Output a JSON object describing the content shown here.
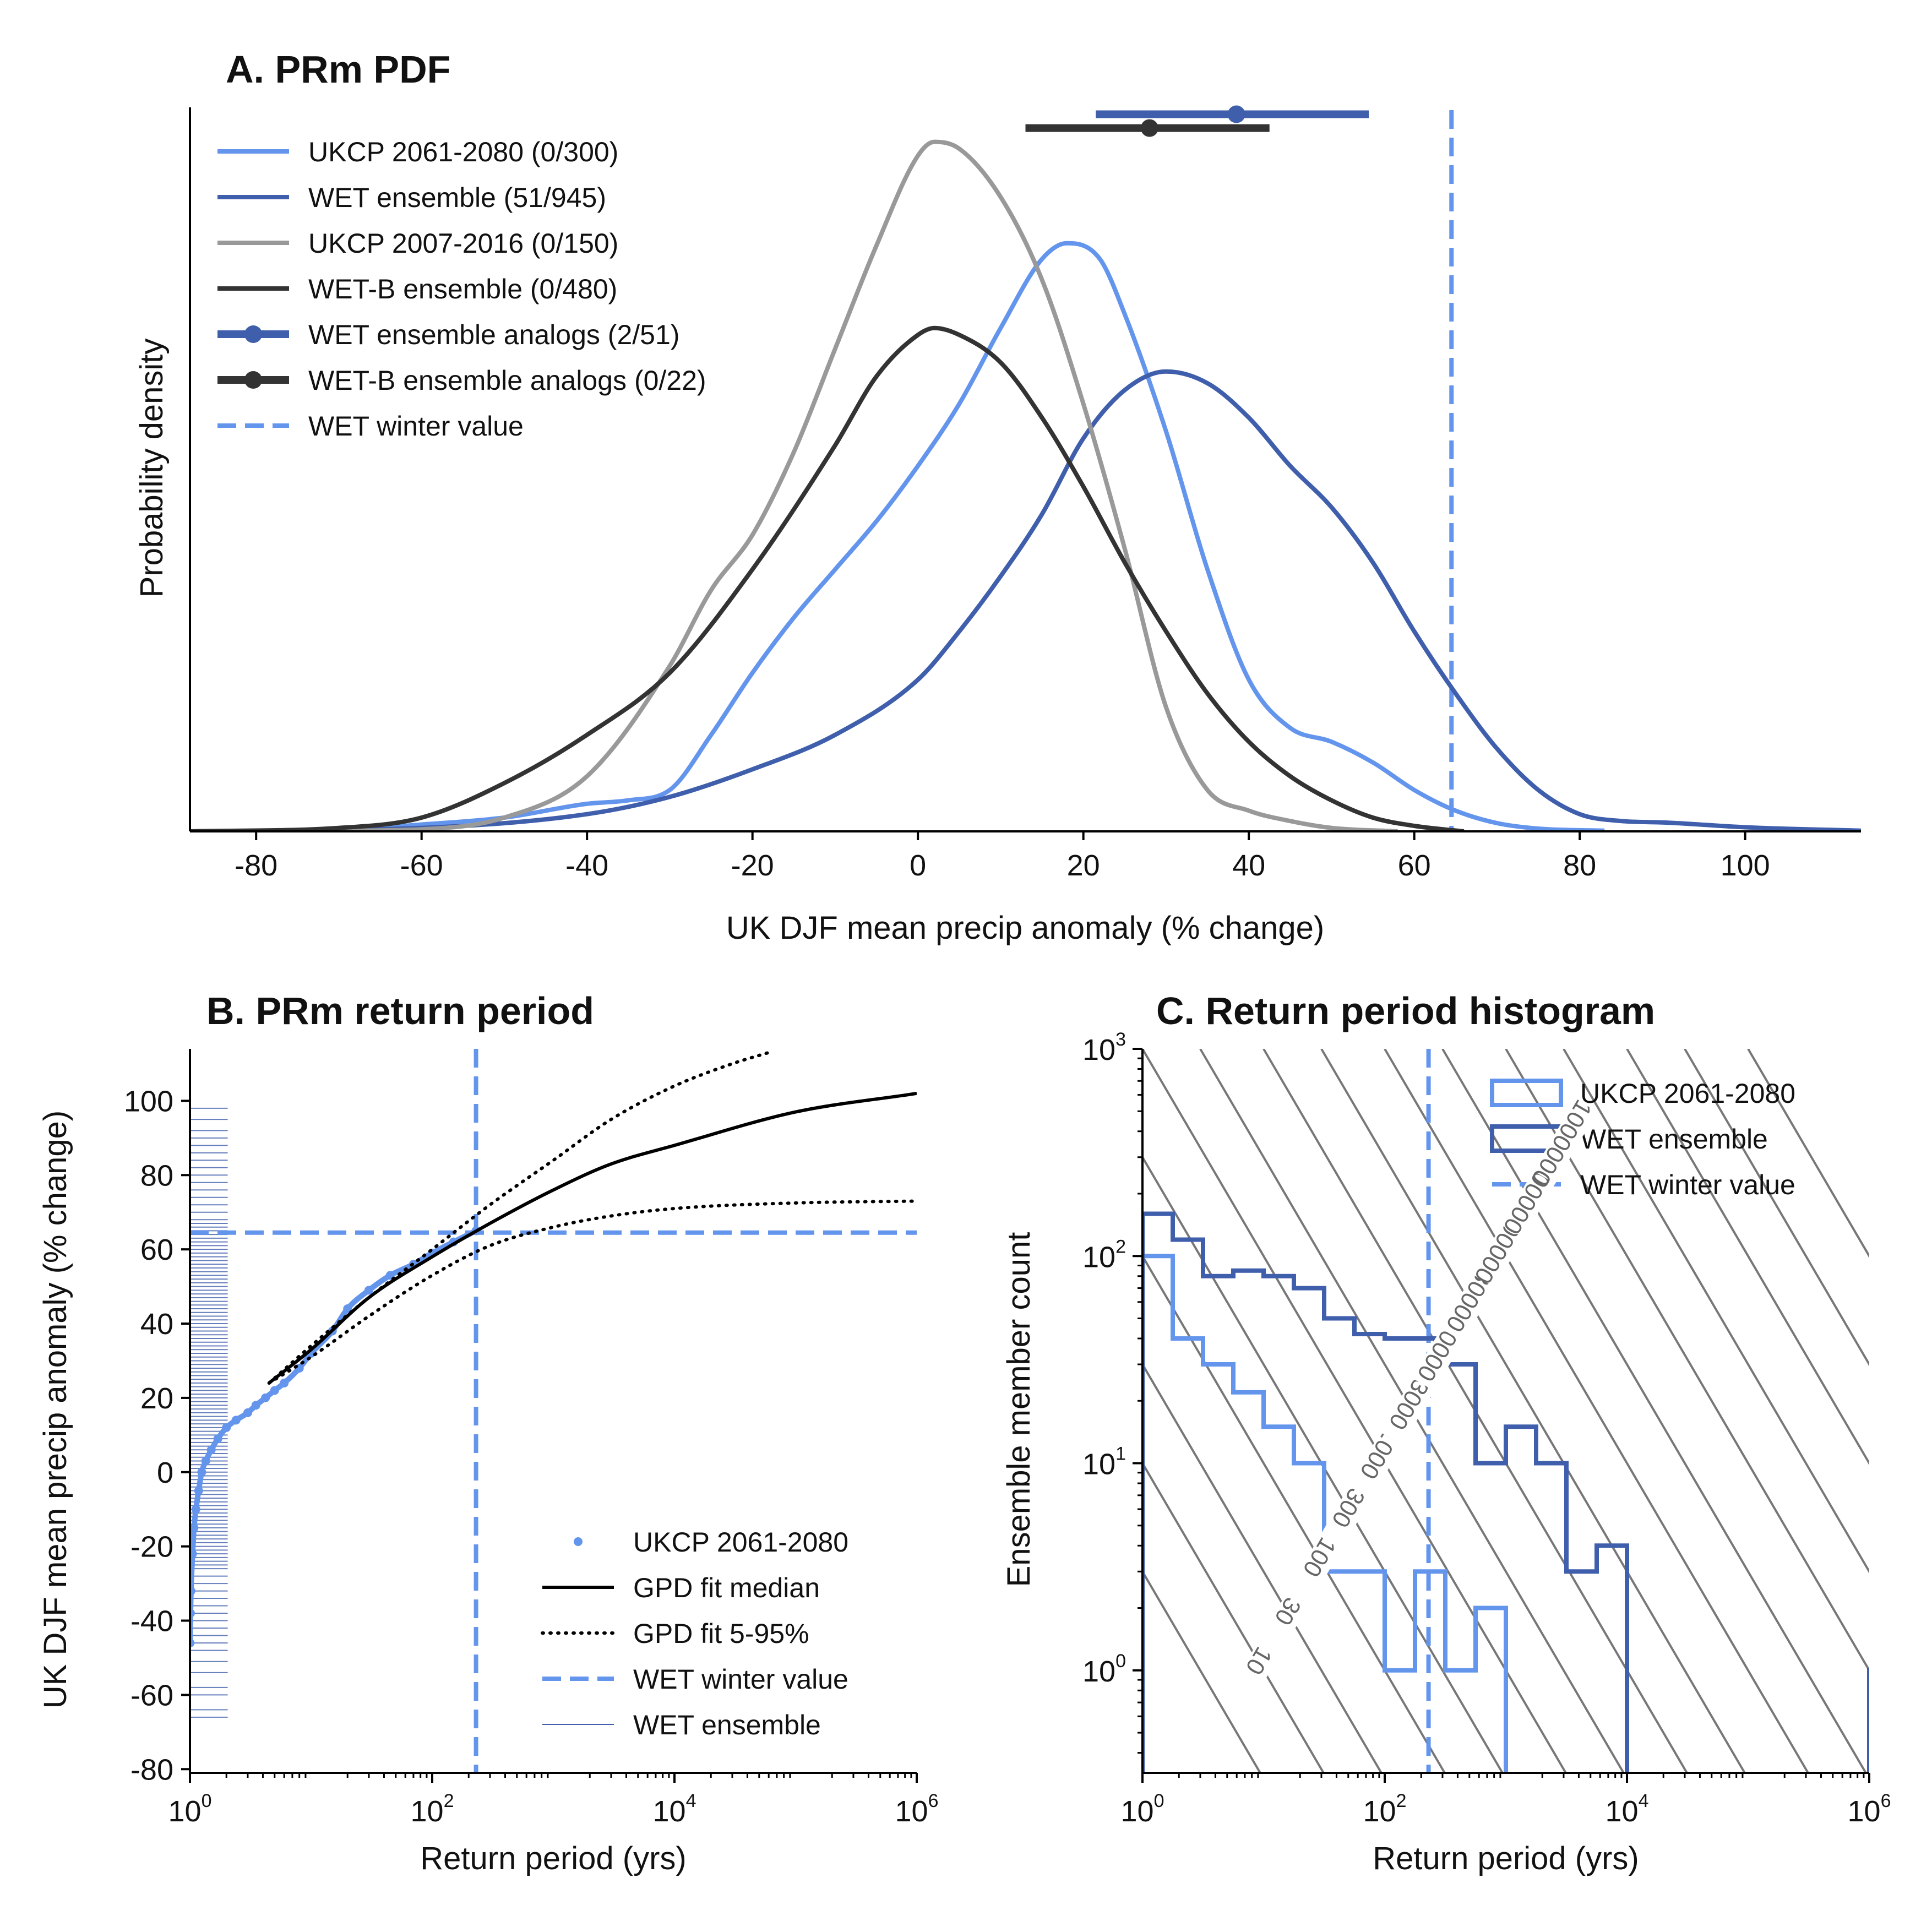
{
  "chart_data": [
    {
      "panel": "A",
      "type": "line",
      "title": "A. PRm PDF",
      "xlabel": "UK DJF mean precip anomaly (% change)",
      "ylabel": "Probability density",
      "xlim": [
        -88,
        114
      ],
      "ylim": [
        0,
        1.05
      ],
      "xticks": [
        -80,
        -60,
        -40,
        -20,
        0,
        20,
        40,
        60,
        80,
        100
      ],
      "xtick_labels": [
        "-80",
        "-60",
        "-40",
        "-20",
        "0",
        "20",
        "40",
        "60",
        "80",
        "100"
      ],
      "legend_position": "top-left",
      "series": [
        {
          "name": "UKCP 2061-2080 (0/300)",
          "color": "#6495ED",
          "x": [
            -88,
            -70,
            -60,
            -50,
            -40,
            -35,
            -30,
            -25,
            -20,
            -15,
            -10,
            -5,
            0,
            5,
            10,
            15,
            18,
            22,
            25,
            30,
            35,
            40,
            45,
            50,
            55,
            60,
            65,
            70,
            75,
            83
          ],
          "y": [
            0,
            0.002,
            0.01,
            0.02,
            0.04,
            0.045,
            0.06,
            0.14,
            0.23,
            0.31,
            0.38,
            0.45,
            0.53,
            0.62,
            0.73,
            0.83,
            0.853,
            0.83,
            0.75,
            0.58,
            0.38,
            0.22,
            0.15,
            0.13,
            0.1,
            0.06,
            0.03,
            0.012,
            0.004,
            0.001
          ]
        },
        {
          "name": "WET ensemble (51/945)",
          "color": "#3F5EAB",
          "x": [
            -88,
            -60,
            -40,
            -30,
            -20,
            -10,
            0,
            5,
            10,
            15,
            20,
            25,
            30,
            35,
            40,
            45,
            50,
            55,
            60,
            65,
            70,
            75,
            80,
            85,
            90,
            100,
            114
          ],
          "y": [
            0,
            0.005,
            0.025,
            0.05,
            0.09,
            0.14,
            0.22,
            0.29,
            0.37,
            0.46,
            0.57,
            0.64,
            0.667,
            0.65,
            0.6,
            0.53,
            0.47,
            0.39,
            0.29,
            0.2,
            0.12,
            0.06,
            0.025,
            0.015,
            0.013,
            0.006,
            0.001
          ]
        },
        {
          "name": "UKCP 2007-2016 (0/150)",
          "color": "#999999",
          "x": [
            -88,
            -70,
            -60,
            -50,
            -40,
            -30,
            -25,
            -20,
            -15,
            -10,
            -5,
            0,
            2,
            5,
            10,
            15,
            20,
            25,
            30,
            35,
            40,
            45,
            50,
            58
          ],
          "y": [
            0,
            0.001,
            0.003,
            0.02,
            0.08,
            0.24,
            0.35,
            0.43,
            0.55,
            0.7,
            0.85,
            0.98,
            1.0,
            0.99,
            0.92,
            0.8,
            0.62,
            0.41,
            0.18,
            0.06,
            0.03,
            0.015,
            0.005,
            0
          ]
        },
        {
          "name": "WET-B ensemble (0/480)",
          "color": "#333333",
          "x": [
            -88,
            -70,
            -60,
            -50,
            -40,
            -30,
            -20,
            -10,
            -5,
            0,
            2,
            5,
            10,
            15,
            20,
            25,
            30,
            35,
            40,
            45,
            50,
            55,
            60,
            66
          ],
          "y": [
            0,
            0.005,
            0.02,
            0.07,
            0.14,
            0.23,
            0.38,
            0.56,
            0.66,
            0.72,
            0.73,
            0.72,
            0.68,
            0.6,
            0.5,
            0.39,
            0.29,
            0.2,
            0.13,
            0.08,
            0.045,
            0.02,
            0.008,
            0
          ]
        }
      ],
      "analog_markers": [
        {
          "name": "WET ensemble analogs (2/51)",
          "color": "#3F5EAB",
          "center": 38.5,
          "range": [
            21.5,
            54.5
          ],
          "y": 1.04
        },
        {
          "name": "WET-B ensemble analogs (0/22)",
          "color": "#333333",
          "center": 28,
          "range": [
            13,
            42.5
          ],
          "y": 1.02
        }
      ],
      "reference_line": {
        "name": "WET winter value",
        "color": "#6495ED",
        "x": 64.5
      }
    },
    {
      "panel": "B",
      "type": "line",
      "title": "B. PRm return period",
      "xlabel": "Return period (yrs)",
      "ylabel": "UK DJF mean precip anomaly (% change)",
      "xscale": "log",
      "xlim": [
        1,
        1000000
      ],
      "ylim": [
        -81,
        114
      ],
      "xticks": [
        1,
        100,
        10000,
        1000000
      ],
      "xtick_labels": [
        {
          "base": "10",
          "exp": "0"
        },
        {
          "base": "10",
          "exp": "2"
        },
        {
          "base": "10",
          "exp": "4"
        },
        {
          "base": "10",
          "exp": "6"
        }
      ],
      "yticks": [
        -80,
        -60,
        -40,
        -20,
        0,
        20,
        40,
        60,
        80,
        100
      ],
      "ytick_labels": [
        "-80",
        "-60",
        "-40",
        "-20",
        "0",
        "20",
        "40",
        "60",
        "80",
        "100"
      ],
      "legend_position": "lower-right",
      "series": [
        {
          "name": "UKCP 2061-2080",
          "color": "#6495ED",
          "kind": "scatter",
          "x": [
            1.003,
            1.01,
            1.02,
            1.05,
            1.08,
            1.12,
            1.18,
            1.25,
            1.35,
            1.5,
            1.7,
            2.0,
            2.4,
            3.0,
            3.5,
            4.2,
            5,
            6,
            8,
            10,
            15,
            20,
            30,
            45,
            70,
            100,
            150,
            230
          ],
          "y": [
            -46,
            -38,
            -32,
            -22,
            -15,
            -10,
            -5,
            0,
            3,
            6,
            9,
            12,
            14,
            16,
            18,
            20,
            22,
            24,
            28,
            32,
            38,
            44,
            49,
            53,
            56,
            59,
            62,
            65
          ]
        },
        {
          "name": "GPD fit median",
          "color": "#000000",
          "kind": "line",
          "x": [
            4.5,
            10,
            30,
            100,
            300,
            1000,
            3000,
            10000,
            100000,
            1000000
          ],
          "y": [
            24,
            33,
            47,
            58,
            67,
            76,
            83,
            88,
            97,
            102
          ]
        },
        {
          "name": "GPD fit 5-95%",
          "color": "#000000",
          "kind": "dotted",
          "x": [
            4.5,
            10,
            30,
            100,
            300,
            1000,
            3000,
            10000,
            30000,
            60000
          ],
          "y": [
            24,
            34,
            47,
            60,
            72,
            84,
            95,
            104,
            110,
            113
          ]
        },
        {
          "name": "GPD fit 5-95% (lower)",
          "color": "#000000",
          "kind": "dotted",
          "x": [
            4.5,
            10,
            30,
            100,
            300,
            1000,
            3000,
            10000,
            100000,
            1000000
          ],
          "y": [
            24,
            31,
            42,
            53,
            61,
            66,
            69,
            71,
            72.5,
            73
          ]
        }
      ],
      "rug": {
        "name": "WET ensemble",
        "color": "#3F5EAB",
        "x_range": [
          1,
          2.05
        ],
        "y": [
          -66,
          -64,
          -60,
          -58,
          -54,
          -51,
          -48,
          -46,
          -44,
          -42,
          -40,
          -38,
          -36,
          -34,
          -32,
          -30,
          -28,
          -26,
          -25,
          -24,
          -23,
          -22,
          -21,
          -20,
          -19,
          -18,
          -17,
          -16,
          -15,
          -14,
          -13,
          -12,
          -11,
          -10,
          -9,
          -8,
          -7,
          -6,
          -5,
          -4,
          -3,
          -2,
          -1,
          0,
          1,
          2,
          3,
          4,
          5,
          6,
          7,
          8,
          9,
          10,
          11,
          12,
          13,
          14,
          15,
          16,
          17,
          18,
          19,
          20,
          21,
          22,
          23,
          24,
          25,
          26,
          27,
          28,
          29,
          30,
          31,
          32,
          33,
          34,
          35,
          36,
          37,
          38,
          39,
          40,
          41,
          42,
          43,
          44,
          45,
          46,
          47,
          48,
          49,
          50,
          51,
          52,
          53,
          54,
          55,
          56,
          57,
          58,
          59,
          60,
          61,
          62,
          63,
          64,
          65,
          66,
          67,
          68,
          70,
          72,
          74,
          76,
          78,
          80,
          82,
          84,
          86,
          88,
          90,
          92,
          95,
          98
        ]
      },
      "reference_lines": {
        "name": "WET winter value",
        "color": "#6495ED",
        "x": 230,
        "y": 64.5
      }
    },
    {
      "panel": "C",
      "type": "histogram",
      "title": "C. Return period histogram",
      "xlabel": "Return period (yrs)",
      "ylabel": "Ensemble member count",
      "xscale": "log",
      "yscale": "log",
      "xlim": [
        1,
        1000000
      ],
      "ylim": [
        0.32,
        1000
      ],
      "xticks": [
        1,
        100,
        10000,
        1000000
      ],
      "xtick_labels": [
        {
          "base": "10",
          "exp": "0"
        },
        {
          "base": "10",
          "exp": "2"
        },
        {
          "base": "10",
          "exp": "4"
        },
        {
          "base": "10",
          "exp": "6"
        }
      ],
      "yticks": [
        1,
        10,
        100,
        1000
      ],
      "ytick_labels": [
        {
          "base": "10",
          "exp": "0"
        },
        {
          "base": "10",
          "exp": "1"
        },
        {
          "base": "10",
          "exp": "2"
        },
        {
          "base": "10",
          "exp": "3"
        }
      ],
      "legend_position": "top-right",
      "bin_log_width": 0.25,
      "series": [
        {
          "name": "UKCP 2061-2080",
          "color": "#6495ED",
          "log_bin_start": 0,
          "counts": [
            100,
            40,
            30,
            22,
            15,
            10,
            3,
            3,
            1,
            3,
            1,
            2
          ]
        },
        {
          "name": "WET ensemble",
          "color": "#3F5EAB",
          "log_bin_start": 0,
          "counts": [
            160,
            120,
            80,
            85,
            80,
            70,
            50,
            42,
            40,
            40,
            30,
            10,
            15,
            10,
            3,
            4,
            0,
            0,
            0,
            0,
            0,
            0,
            0,
            0,
            1,
            1,
            2,
            1,
            0,
            1,
            0,
            1
          ]
        }
      ],
      "isolines": {
        "color": "#777777",
        "products": [
          3,
          10,
          30,
          100,
          300,
          1000,
          3000,
          10000,
          30000,
          100000,
          300000,
          1000000,
          3000000,
          10000000,
          30000000,
          100000000
        ],
        "labels": [
          {
            "text": "10",
            "value": 10
          },
          {
            "text": "30",
            "value": 30
          },
          {
            "text": "100",
            "value": 100
          },
          {
            "text": "300",
            "value": 300
          },
          {
            "text": "1000",
            "value": 1000
          },
          {
            "text": "3000",
            "value": 3000
          },
          {
            "text": "10000",
            "value": 10000
          },
          {
            "text": "30000",
            "value": 30000
          },
          {
            "text": "100000",
            "value": 100000
          },
          {
            "text": "300000",
            "value": 300000
          },
          {
            "text": "1000000",
            "value": 1000000
          }
        ]
      },
      "reference_line": {
        "name": "WET winter value",
        "color": "#6495ED",
        "x": 230
      }
    }
  ]
}
